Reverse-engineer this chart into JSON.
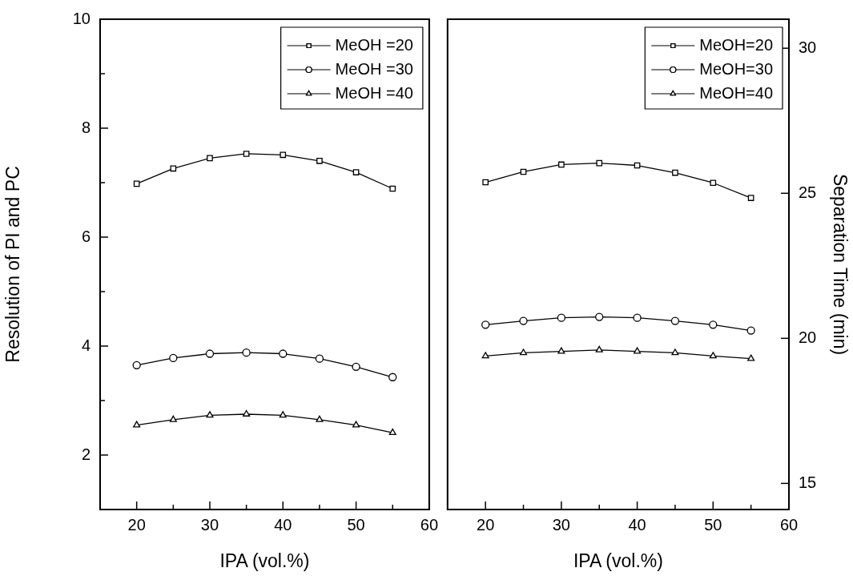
{
  "chart_data": [
    {
      "type": "line",
      "xlabel": "IPA (vol.%)",
      "ylabel": "Resolution of PI and PC",
      "legend": "top right",
      "x": [
        20,
        25,
        30,
        35,
        40,
        45,
        50,
        55
      ],
      "xlim": [
        15,
        60
      ],
      "xticks": [
        20,
        {
          "value": 25,
          "label": null
        },
        30,
        {
          "value": 35,
          "label": null
        },
        40,
        {
          "value": 45,
          "label": null
        },
        50,
        {
          "value": 55,
          "label": null
        },
        60
      ],
      "ylim": [
        1,
        10
      ],
      "yticks": [
        {
          "value": 1,
          "label": null
        },
        2,
        {
          "value": 3,
          "label": null
        },
        4,
        {
          "value": 5,
          "label": null
        },
        6,
        {
          "value": 7,
          "label": null
        },
        8,
        {
          "value": 9,
          "label": null
        },
        10
      ],
      "series": [
        {
          "name": "MeOH =20",
          "color": "#000000",
          "marker": "square",
          "values": [
            6.98,
            7.26,
            7.45,
            7.53,
            7.51,
            7.4,
            7.19,
            6.89
          ]
        },
        {
          "name": "MeOH =30",
          "color": "#000000",
          "marker": "circle",
          "values": [
            3.65,
            3.78,
            3.86,
            3.88,
            3.86,
            3.77,
            3.62,
            3.43
          ]
        },
        {
          "name": "MeOH =40",
          "color": "#000000",
          "marker": "triangle",
          "values": [
            2.55,
            2.65,
            2.73,
            2.75,
            2.73,
            2.65,
            2.55,
            2.41
          ]
        }
      ]
    },
    {
      "type": "line",
      "xlabel": "IPA (vol.%)",
      "y2label": "Separation Time (min)",
      "legend": "top right",
      "x": [
        20,
        25,
        30,
        35,
        40,
        45,
        50,
        55
      ],
      "xlim": [
        15,
        60
      ],
      "xticks": [
        20,
        {
          "value": 25,
          "label": null
        },
        30,
        {
          "value": 35,
          "label": null
        },
        40,
        {
          "value": 45,
          "label": null
        },
        50,
        {
          "value": 55,
          "label": null
        },
        60
      ],
      "y2lim": [
        14.1,
        31
      ],
      "y2ticks": [
        15,
        20,
        25,
        30
      ],
      "series": [
        {
          "name": "MeOH=20",
          "color": "#000000",
          "marker": "square",
          "axis": "y2",
          "values": [
            25.38,
            25.74,
            25.99,
            26.04,
            25.96,
            25.71,
            25.36,
            24.84
          ]
        },
        {
          "name": "MeOH=30",
          "color": "#000000",
          "marker": "circle",
          "axis": "y2",
          "values": [
            20.47,
            20.6,
            20.71,
            20.74,
            20.71,
            20.6,
            20.47,
            20.27
          ]
        },
        {
          "name": "MeOH=40",
          "color": "#000000",
          "marker": "triangle",
          "axis": "y2",
          "values": [
            19.39,
            19.5,
            19.55,
            19.6,
            19.55,
            19.5,
            19.39,
            19.3
          ]
        }
      ]
    }
  ]
}
